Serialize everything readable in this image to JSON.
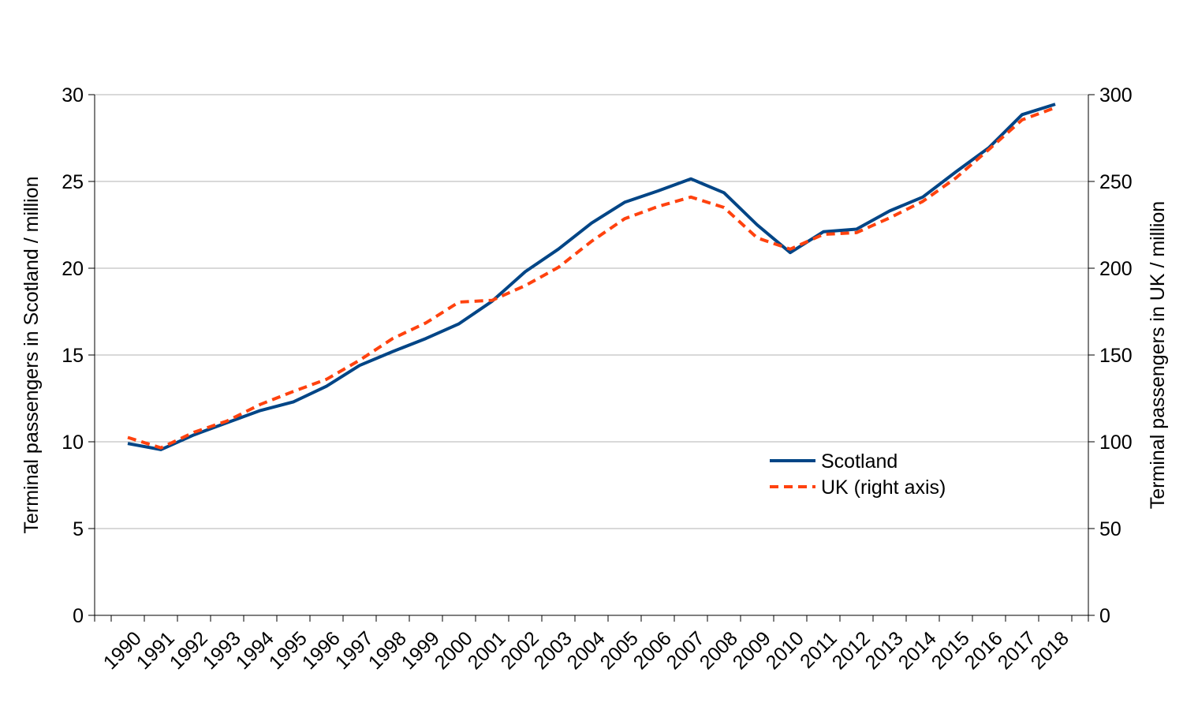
{
  "chart_data": {
    "type": "line",
    "x": [
      1990,
      1991,
      1992,
      1993,
      1994,
      1995,
      1996,
      1997,
      1998,
      1999,
      2000,
      2001,
      2002,
      2003,
      2004,
      2005,
      2006,
      2007,
      2008,
      2009,
      2010,
      2011,
      2012,
      2013,
      2014,
      2015,
      2016,
      2017,
      2018
    ],
    "x_labels": [
      "1990",
      "1991",
      "1992",
      "1993",
      "1994",
      "1995",
      "1996",
      "1997",
      "1998",
      "1999",
      "2000",
      "2001",
      "2002",
      "2003",
      "2004",
      "2005",
      "2006",
      "2007",
      "2008",
      "2009",
      "2010",
      "2011",
      "2012",
      "2013",
      "2014",
      "2015",
      "2016",
      "2017",
      "2018"
    ],
    "series": [
      {
        "name": "Scotland",
        "axis": "left",
        "color": "#004586",
        "style": "solid",
        "values": [
          9.9,
          9.55,
          10.4,
          11.1,
          11.8,
          12.3,
          13.2,
          14.4,
          15.2,
          15.95,
          16.8,
          18.1,
          19.8,
          21.1,
          22.6,
          23.8,
          24.45,
          25.15,
          24.35,
          22.5,
          20.9,
          22.1,
          22.25,
          23.3,
          24.1,
          25.55,
          26.95,
          28.85,
          29.45
        ]
      },
      {
        "name": "UK (right axis)",
        "axis": "right",
        "color": "#ff420e",
        "style": "dashed",
        "values": [
          102.5,
          96.5,
          105.5,
          112,
          121.5,
          129,
          136,
          147,
          159.5,
          168.5,
          180.5,
          181.5,
          190,
          200.5,
          215.5,
          228.5,
          235.5,
          241,
          235,
          217.5,
          211,
          219.5,
          220.5,
          229,
          238.5,
          252,
          268.5,
          285.5,
          292.5
        ]
      }
    ],
    "ylabel": "Terminal passengers in Scotland / million",
    "y2label": "Terminal passengers in UK / million",
    "ylim": [
      0,
      30
    ],
    "y2lim": [
      0,
      300
    ],
    "yticks": [
      "0",
      "5",
      "10",
      "15",
      "20",
      "25",
      "30"
    ],
    "y2ticks": [
      "0",
      "50",
      "100",
      "150",
      "200",
      "250",
      "300"
    ],
    "grid": true,
    "legend_position": "lower-right"
  }
}
